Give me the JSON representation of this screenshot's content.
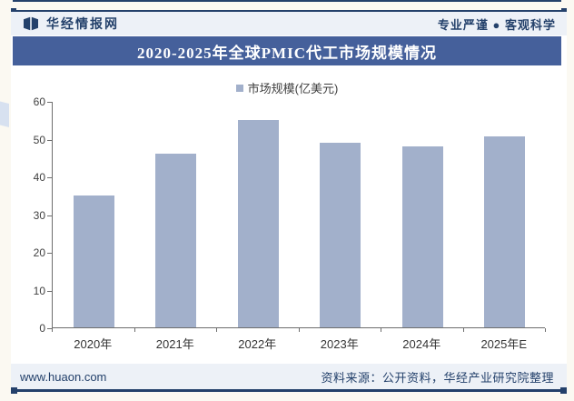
{
  "header": {
    "brand": "华经情报网",
    "slogan": "专业严谨 ● 客观科学"
  },
  "title": "2020-2025年全球PMIC代工市场规模情况",
  "legend": {
    "label": "市场规模(亿美元)"
  },
  "chart_data": {
    "type": "bar",
    "title": "2020-2025年全球PMIC代工市场规模情况",
    "categories": [
      "2020年",
      "2021年",
      "2022年",
      "2023年",
      "2024年",
      "2025年E"
    ],
    "values": [
      35,
      46,
      55,
      49,
      48,
      50.5
    ],
    "series_name": "市场规模(亿美元)",
    "xlabel": "",
    "ylabel": "",
    "ylim": [
      0,
      60
    ],
    "ytick_step": 10,
    "grid": false,
    "legend_position": "top"
  },
  "footer": {
    "url": "www.huaon.com",
    "source": "资料来源：公开资料，华经产业研究院整理"
  },
  "watermark": {
    "text": "华经产业研究院",
    "subtext": "www.huaon.com"
  },
  "colors": {
    "navy": "#24416b",
    "banner": "#45609b",
    "bar": "#a2b0cb",
    "band": "#edf1f7",
    "page": "#fbf9f2"
  }
}
